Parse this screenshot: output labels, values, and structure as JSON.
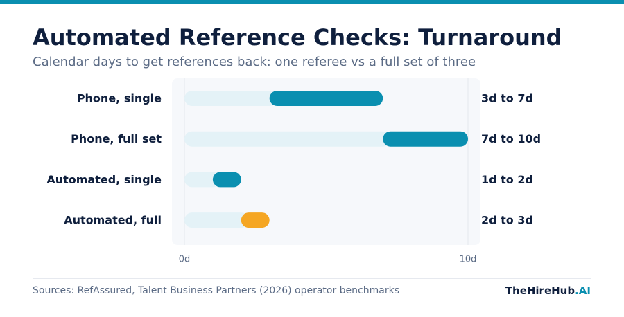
{
  "header": {
    "title": "Automated Reference Checks: Turnaround",
    "subtitle": "Calendar days to get references back: one referee vs a full set of three"
  },
  "chart_data": {
    "type": "bar",
    "orientation": "horizontal-range",
    "title": "Automated Reference Checks: Turnaround",
    "subtitle": "Calendar days to get references back: one referee vs a full set of three",
    "categories": [
      "Phone, single",
      "Phone, full set",
      "Automated, single",
      "Automated, full"
    ],
    "ranges": [
      {
        "start": 3,
        "end": 7,
        "label": "3d to 7d",
        "color": "#0a8fb0"
      },
      {
        "start": 7,
        "end": 10,
        "label": "7d to 10d",
        "color": "#0a8fb0"
      },
      {
        "start": 1,
        "end": 2,
        "label": "1d to 2d",
        "color": "#0a8fb0"
      },
      {
        "start": 2,
        "end": 3,
        "label": "2d to 3d",
        "color": "#f5a623"
      }
    ],
    "xlim": [
      0,
      10
    ],
    "x_ticks": [
      0,
      10
    ],
    "x_tick_labels": [
      "0d",
      "10d"
    ],
    "colors": {
      "lead_in": "#e4f2f7",
      "plot_background": "#f6f8fb"
    },
    "grid": false,
    "legend": "none"
  },
  "footer": {
    "source": "Sources: RefAssured, Talent Business Partners (2026) operator benchmarks",
    "brand_main": "TheHireHub",
    "brand_suffix": ".AI"
  }
}
